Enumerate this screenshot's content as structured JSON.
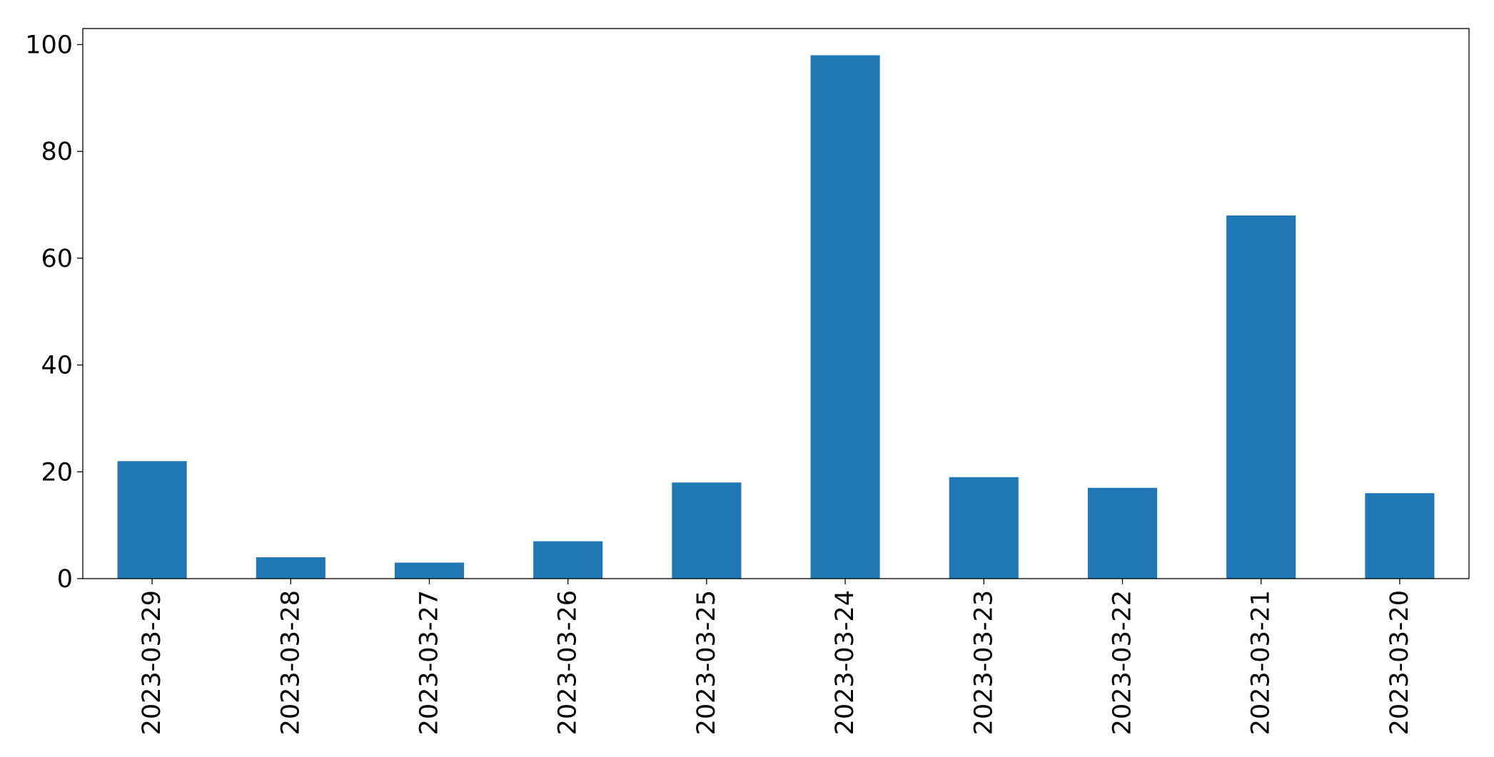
{
  "chart_data": {
    "type": "bar",
    "title": "",
    "xlabel": "",
    "ylabel": "",
    "categories": [
      "2023-03-29",
      "2023-03-28",
      "2023-03-27",
      "2023-03-26",
      "2023-03-25",
      "2023-03-24",
      "2023-03-23",
      "2023-03-22",
      "2023-03-21",
      "2023-03-20"
    ],
    "values": [
      22,
      4,
      3,
      7,
      18,
      98,
      19,
      17,
      68,
      16
    ],
    "ylim": [
      0,
      103
    ],
    "yticks": [
      0,
      20,
      40,
      60,
      80,
      100
    ],
    "bar_color": "#1f77b4",
    "grid": false,
    "legend": false
  }
}
